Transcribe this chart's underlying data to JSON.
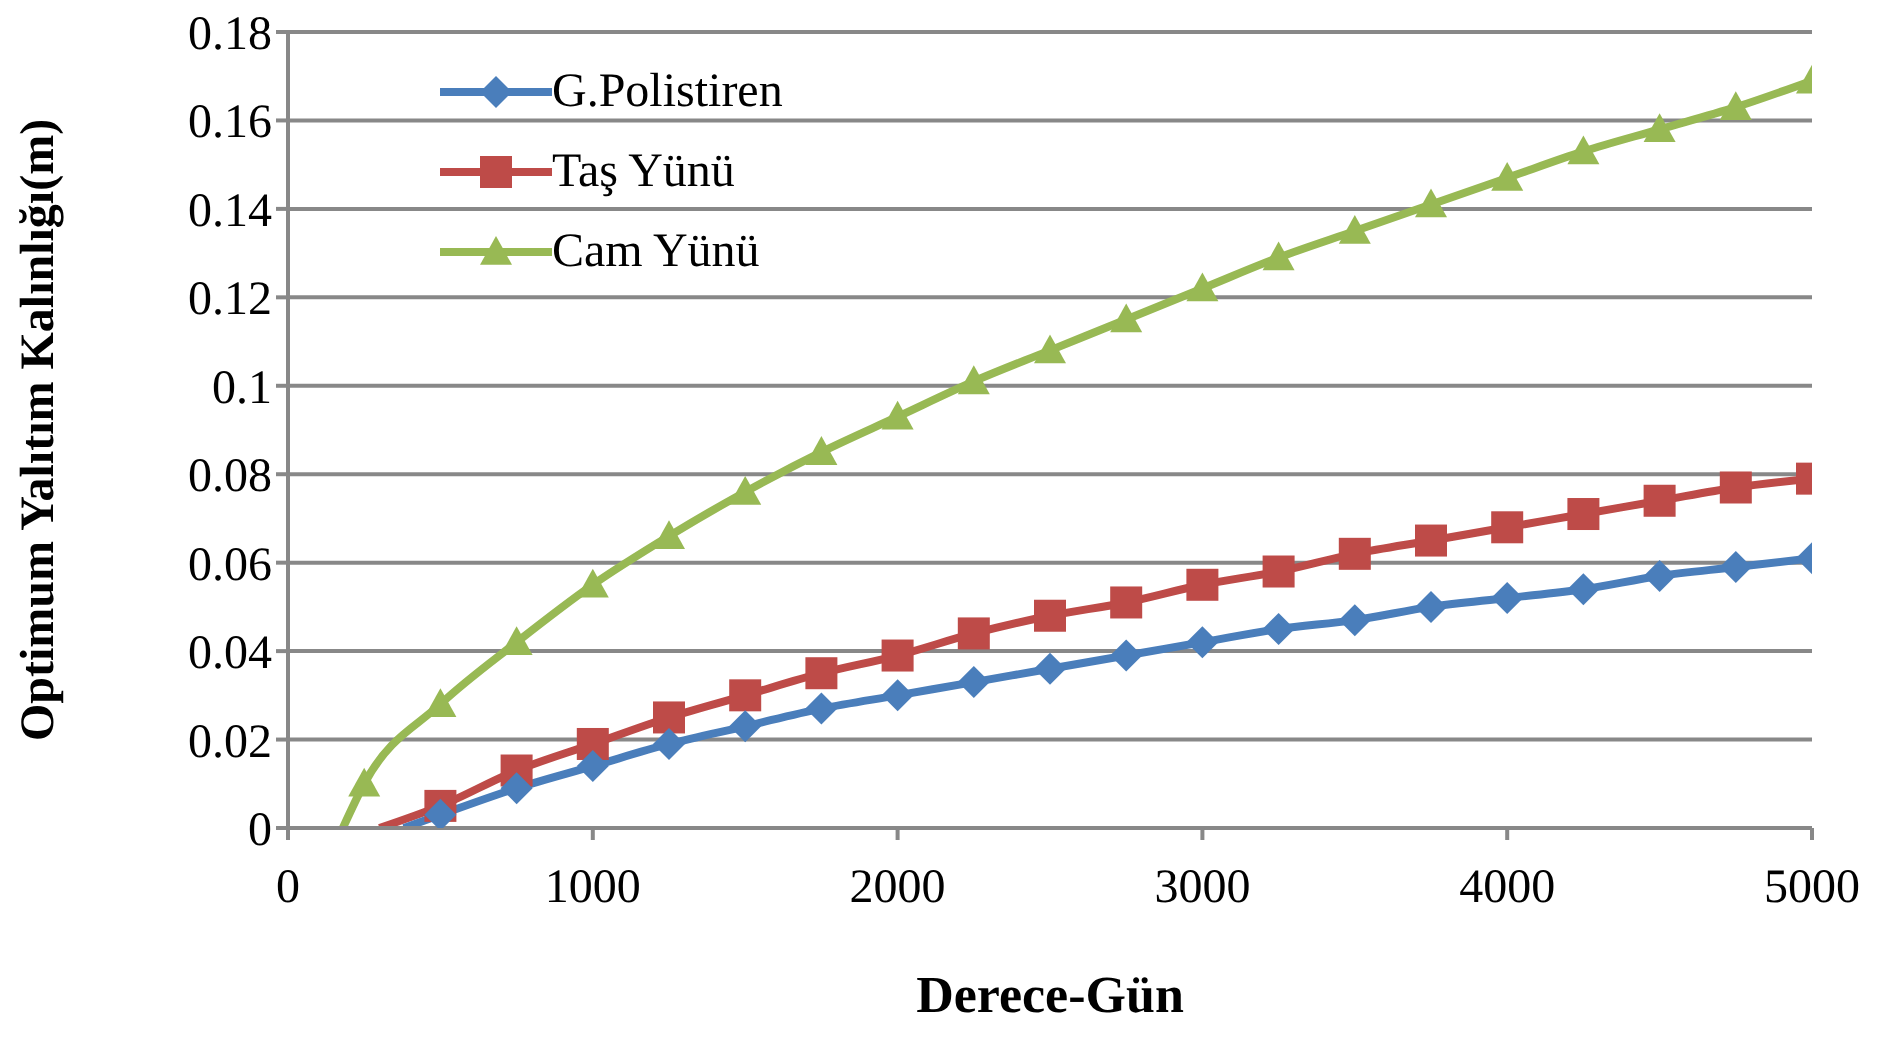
{
  "chart_data": {
    "type": "line",
    "xlabel": "Derece-Gün",
    "ylabel": "Optimum Yalıtım Kalınlığı(m)",
    "xlim": [
      0,
      5000
    ],
    "xticks": [
      0,
      1000,
      2000,
      3000,
      4000,
      5000
    ],
    "ylim": [
      0,
      0.18
    ],
    "yticks": [
      0,
      0.02,
      0.04,
      0.06,
      0.08,
      0.1,
      0.12,
      0.14,
      0.16,
      0.18
    ],
    "grid": "y",
    "legend": "top left",
    "line_style": "solid",
    "series": [
      {
        "name": "G.Polistiren",
        "color": "#4a7ebb",
        "marker": "diamond",
        "x": [
          380,
          500,
          750,
          1000,
          1250,
          1500,
          1750,
          2000,
          2250,
          2500,
          2750,
          3000,
          3250,
          3500,
          3750,
          4000,
          4250,
          4500,
          4750,
          5000
        ],
        "values": [
          0,
          0.003,
          0.009,
          0.014,
          0.019,
          0.023,
          0.027,
          0.03,
          0.033,
          0.036,
          0.039,
          0.042,
          0.045,
          0.047,
          0.05,
          0.052,
          0.054,
          0.057,
          0.059,
          0.061
        ]
      },
      {
        "name": "Taş Yünü",
        "color": "#be4b48",
        "marker": "square",
        "x": [
          300,
          500,
          750,
          1000,
          1250,
          1500,
          1750,
          2000,
          2250,
          2500,
          2750,
          3000,
          3250,
          3500,
          3750,
          4000,
          4250,
          4500,
          4750,
          5000
        ],
        "values": [
          0,
          0.005,
          0.013,
          0.019,
          0.025,
          0.03,
          0.035,
          0.039,
          0.044,
          0.048,
          0.051,
          0.055,
          0.058,
          0.062,
          0.065,
          0.068,
          0.071,
          0.074,
          0.077,
          0.079
        ]
      },
      {
        "name": "Cam Yünü",
        "color": "#98b954",
        "marker": "triangle",
        "x": [
          180,
          250,
          500,
          750,
          1000,
          1250,
          1500,
          1750,
          2000,
          2250,
          2500,
          2750,
          3000,
          3250,
          3500,
          3750,
          4000,
          4250,
          4500,
          4750,
          5000
        ],
        "values": [
          0,
          0.01,
          0.028,
          0.042,
          0.055,
          0.066,
          0.076,
          0.085,
          0.093,
          0.101,
          0.108,
          0.115,
          0.122,
          0.129,
          0.135,
          0.141,
          0.147,
          0.153,
          0.158,
          0.163,
          0.169
        ]
      }
    ]
  }
}
